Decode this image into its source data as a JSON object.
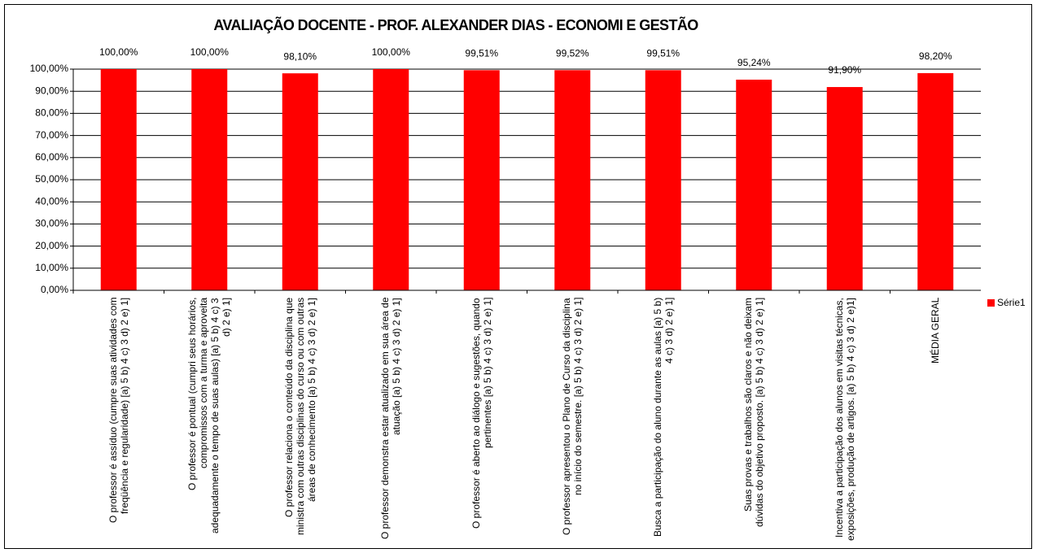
{
  "chart_data": {
    "type": "bar",
    "title": "AVALIAÇÃO DOCENTE - PROF. ALEXANDER DIAS - ECONOMI E GESTÃO",
    "categories": [
      "O professor é assíduo (cumpre suas atividades com freqüência e regularidade) [a) 5 b) 4 c) 3 d) 2 e) 1]",
      "O professor é pontual (cumpri seus horários, compromissos com a turma e aproveita adequadamente o tempo de suas aulas) [a) 5 b) 4 c) 3 d) 2 e) 1]",
      "O professor relaciona o conteúdo da disciplina que ministra com outras disciplinas do curso ou com outras áreas de conhecimento [a) 5 b) 4 c) 3 d) 2 e) 1]",
      "O professor demonstra estar atualizado em sua área de atuação [a) 5 b) 4 c) 3 d) 2 e) 1]",
      "O professor é aberto ao diálogo e sugestões, quando pertinentes [a) 5 b) 4 c) 3 d) 2 e) 1]",
      "O professor apresentou o Plano de Curso da disciplina no início do semestre. [a) 5 b) 4 c) 3 d) 2 e) 1]",
      "Busca a participação do aluno durante as aulas [a) 5 b) 4 c) 3 d) 2 e) 1]",
      "Suas provas e trabalhos são claros e não deixam dúvidas do objetivo proposto. [a) 5 b) 4 c) 3 d) 2 e) 1]",
      "Incentiva a participação dos alunos em visitas técnicas, exposições, produção de artigos. [a) 5 b) 4 c) 3 d) 2 e)1]",
      "MÉDIA GERAL"
    ],
    "series": [
      {
        "name": "Série1",
        "color": "#ff0000",
        "values": [
          100,
          100,
          98.1,
          100,
          99.51,
          99.52,
          99.51,
          95.24,
          91.9,
          98.2
        ],
        "value_labels": [
          "100,00%",
          "100,00%",
          "98,10%",
          "100,00%",
          "99,51%",
          "99,52%",
          "99,51%",
          "95,24%",
          "91,90%",
          "98,20%"
        ]
      }
    ],
    "ylim": [
      0,
      100
    ],
    "yticks": [
      {
        "value": 0,
        "label": "0,00%"
      },
      {
        "value": 10,
        "label": "10,00%"
      },
      {
        "value": 20,
        "label": "20,00%"
      },
      {
        "value": 30,
        "label": "30,00%"
      },
      {
        "value": 40,
        "label": "40,00%"
      },
      {
        "value": 50,
        "label": "50,00%"
      },
      {
        "value": 60,
        "label": "60,00%"
      },
      {
        "value": 70,
        "label": "70,00%"
      },
      {
        "value": 80,
        "label": "80,00%"
      },
      {
        "value": 90,
        "label": "90,00%"
      },
      {
        "value": 100,
        "label": "100,00%"
      }
    ],
    "grid": true,
    "legend": "right"
  }
}
